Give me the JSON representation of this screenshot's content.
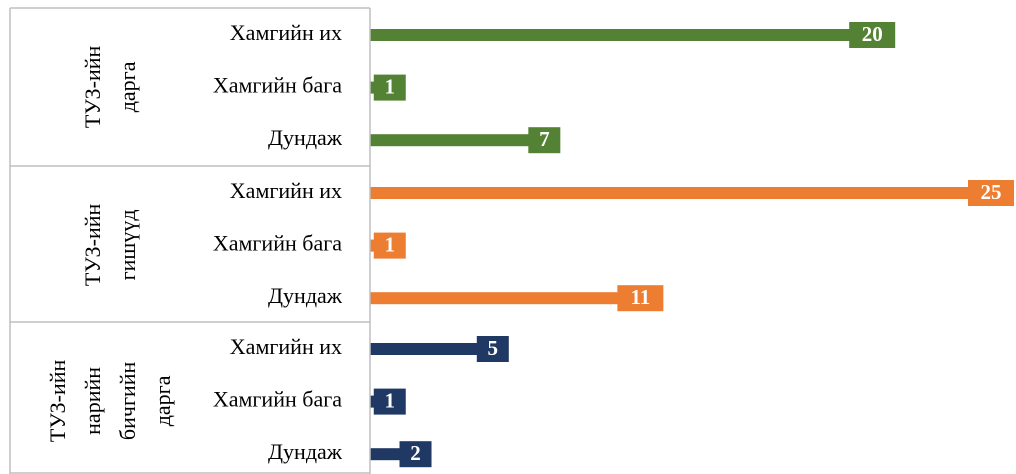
{
  "chart_data": {
    "type": "bar",
    "xlim": [
      0,
      25
    ],
    "series": [
      {
        "name": [
          "ТУЗ-ийн",
          "дарга"
        ],
        "color": "#548235",
        "categories": [
          "Хамгийн их",
          "Хамгийн бага",
          "Дундаж"
        ],
        "values": [
          20,
          1,
          7
        ]
      },
      {
        "name": [
          "ТУЗ-ийн",
          "гишүүд"
        ],
        "color": "#ed7d31",
        "categories": [
          "Хамгийн их",
          "Хамгийн бага",
          "Дундаж"
        ],
        "values": [
          25,
          1,
          11
        ]
      },
      {
        "name": [
          "ТУЗ-ийн",
          "нарийн",
          "бичгийн",
          "дарга"
        ],
        "color": "#203864",
        "categories": [
          "Хамгийн их",
          "Хамгийн бага",
          "Дундаж"
        ],
        "values": [
          5,
          1,
          2
        ]
      }
    ]
  }
}
